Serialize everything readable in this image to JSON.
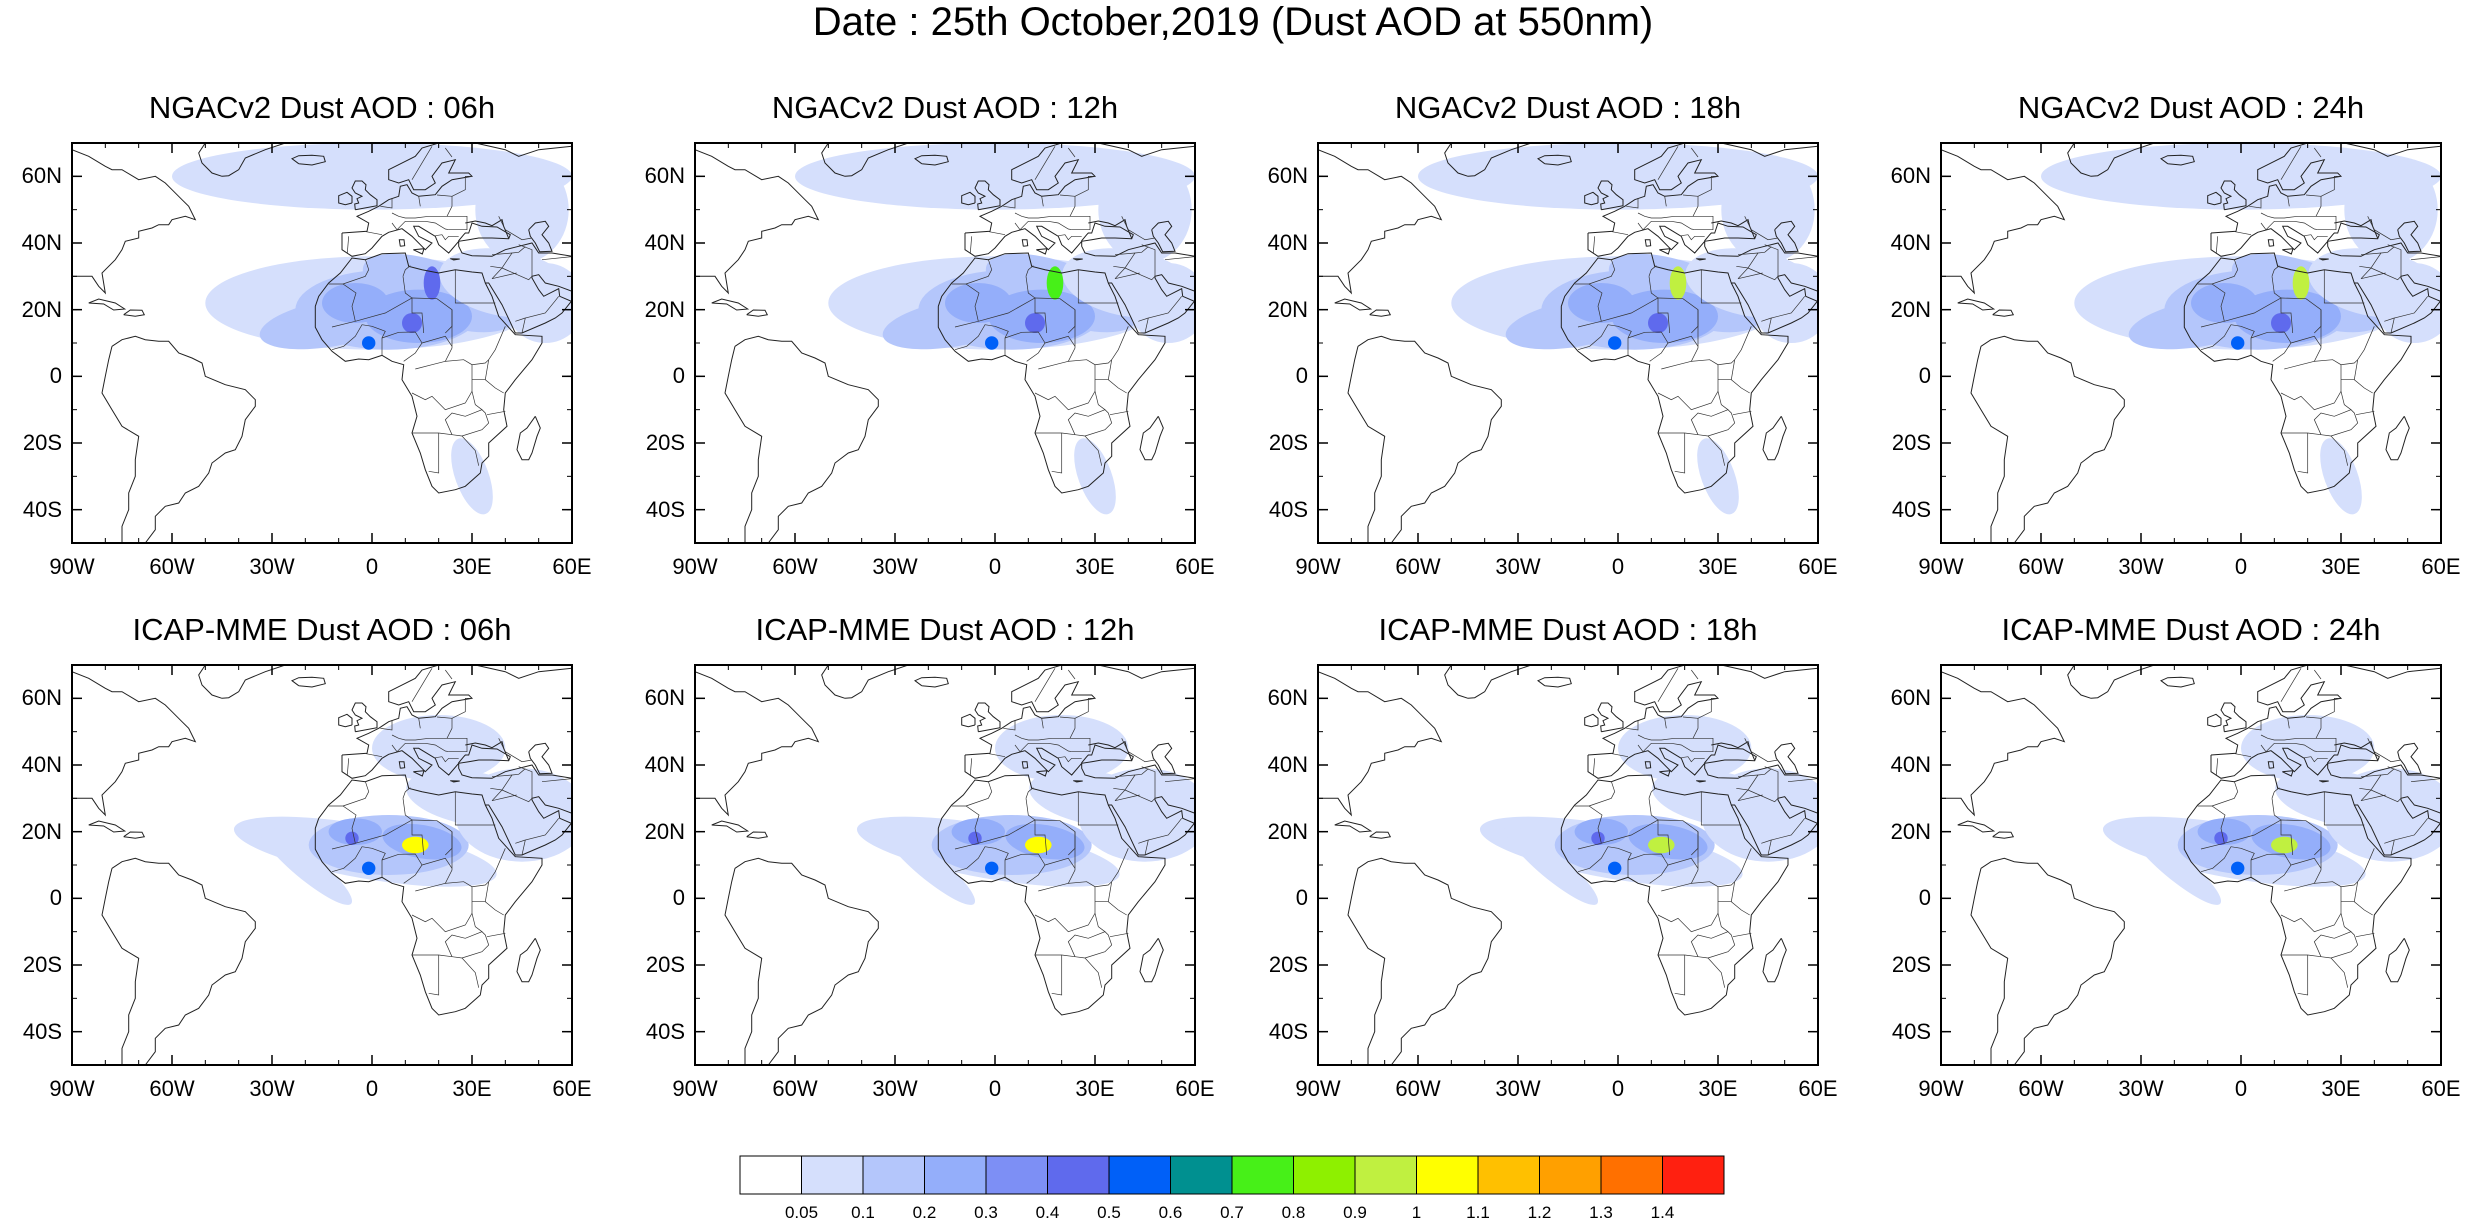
{
  "title": "Date : 25th October,2019 (Dust AOD at 550nm)",
  "panels": [
    {
      "id": "ngac-06",
      "title": "NGACv2 Dust AOD : 06h",
      "model": "ngac",
      "peak": 0.45
    },
    {
      "id": "ngac-12",
      "title": "NGACv2 Dust AOD : 12h",
      "model": "ngac",
      "peak": 0.75
    },
    {
      "id": "ngac-18",
      "title": "NGACv2 Dust AOD : 18h",
      "model": "ngac",
      "peak": 0.9
    },
    {
      "id": "ngac-24",
      "title": "NGACv2 Dust AOD : 24h",
      "model": "ngac",
      "peak": 0.9
    },
    {
      "id": "icap-06",
      "title": "ICAP-MME Dust AOD : 06h",
      "model": "icap",
      "peak": 1.0
    },
    {
      "id": "icap-12",
      "title": "ICAP-MME Dust AOD : 12h",
      "model": "icap",
      "peak": 1.0
    },
    {
      "id": "icap-18",
      "title": "ICAP-MME Dust AOD : 18h",
      "model": "icap",
      "peak": 0.9
    },
    {
      "id": "icap-24",
      "title": "ICAP-MME Dust AOD : 24h",
      "model": "icap",
      "peak": 0.9
    }
  ],
  "map_extent": {
    "lon": [
      -90,
      60
    ],
    "lat": [
      -50,
      70
    ]
  },
  "lon_ticks": [
    {
      "value": -90,
      "label": "90W"
    },
    {
      "value": -60,
      "label": "60W"
    },
    {
      "value": -30,
      "label": "30W"
    },
    {
      "value": 0,
      "label": "0"
    },
    {
      "value": 30,
      "label": "30E"
    },
    {
      "value": 60,
      "label": "60E"
    }
  ],
  "lat_ticks": [
    {
      "value": 60,
      "label": "60N"
    },
    {
      "value": 40,
      "label": "40N"
    },
    {
      "value": 20,
      "label": "20N"
    },
    {
      "value": 0,
      "label": "0"
    },
    {
      "value": -20,
      "label": "20S"
    },
    {
      "value": -40,
      "label": "40S"
    }
  ],
  "colorbar": {
    "levels": [
      "0.05",
      "0.1",
      "0.2",
      "0.3",
      "0.4",
      "0.5",
      "0.6",
      "0.7",
      "0.8",
      "0.9",
      "1",
      "1.1",
      "1.2",
      "1.3",
      "1.4"
    ],
    "colors": [
      "#ffffff",
      "#d5dffc",
      "#b4c6fb",
      "#94aefa",
      "#7d8ff5",
      "#5f6aed",
      "#0060f8",
      "#009090",
      "#47f018",
      "#8ef000",
      "#c0f040",
      "#ffff00",
      "#ffc000",
      "#ffa000",
      "#ff7000",
      "#ff2010"
    ]
  }
}
